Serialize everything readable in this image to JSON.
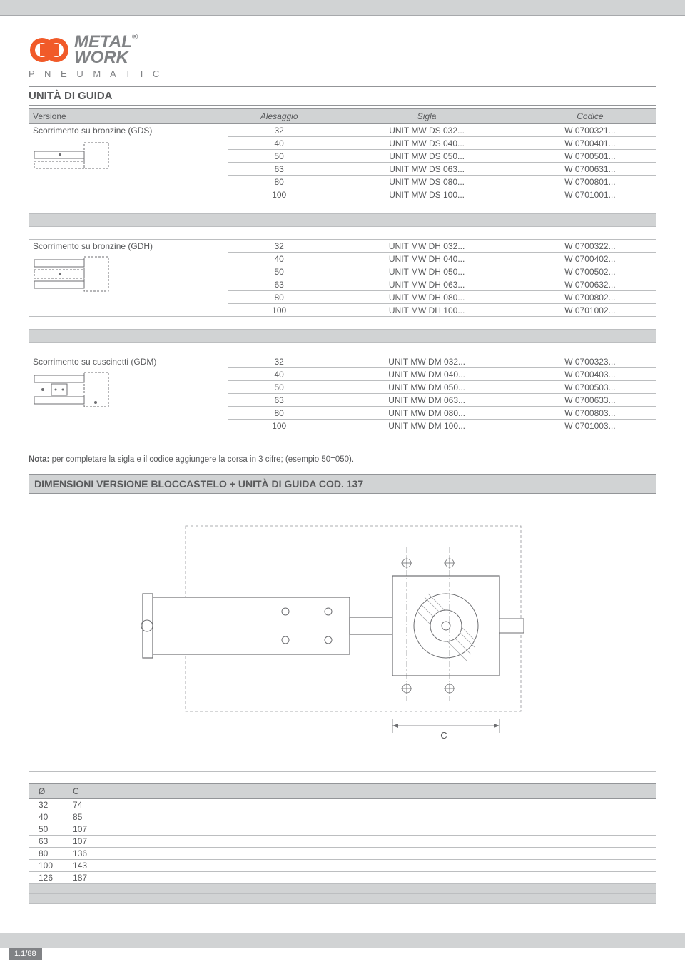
{
  "logo": {
    "brand_top": "METAL",
    "brand_bottom": "WORK",
    "tagline": "P N E U M A T I C",
    "icon_color": "#f15a29",
    "text_color": "#808285"
  },
  "title": "UNITÀ DI GUIDA",
  "headers": {
    "versione": "Versione",
    "alesaggio": "Alesaggio",
    "sigla": "Sigla",
    "codice": "Codice"
  },
  "groups": [
    {
      "name": "Scorrimento su bronzine (GDS)",
      "rows": [
        {
          "a": "32",
          "s": "UNIT MW DS 032...",
          "c": "W 0700321..."
        },
        {
          "a": "40",
          "s": "UNIT MW DS 040...",
          "c": "W 0700401..."
        },
        {
          "a": "50",
          "s": "UNIT MW DS 050...",
          "c": "W 0700501..."
        },
        {
          "a": "63",
          "s": "UNIT MW DS 063...",
          "c": "W 0700631..."
        },
        {
          "a": "80",
          "s": "UNIT MW DS 080...",
          "c": "W 0700801..."
        },
        {
          "a": "100",
          "s": "UNIT MW DS 100...",
          "c": "W 0701001..."
        }
      ],
      "icon_type": "single"
    },
    {
      "name": "Scorrimento su bronzine (GDH)",
      "rows": [
        {
          "a": "32",
          "s": "UNIT MW DH 032...",
          "c": "W 0700322..."
        },
        {
          "a": "40",
          "s": "UNIT MW DH 040...",
          "c": "W 0700402..."
        },
        {
          "a": "50",
          "s": "UNIT MW DH 050...",
          "c": "W 0700502..."
        },
        {
          "a": "63",
          "s": "UNIT MW DH 063...",
          "c": "W 0700632..."
        },
        {
          "a": "80",
          "s": "UNIT MW DH 080...",
          "c": "W 0700802..."
        },
        {
          "a": "100",
          "s": "UNIT MW DH 100...",
          "c": "W 0701002..."
        }
      ],
      "icon_type": "double"
    },
    {
      "name": "Scorrimento su cuscinetti (GDM)",
      "rows": [
        {
          "a": "32",
          "s": "UNIT MW DM 032...",
          "c": "W 0700323..."
        },
        {
          "a": "40",
          "s": "UNIT MW DM 040...",
          "c": "W 0700403..."
        },
        {
          "a": "50",
          "s": "UNIT MW DM 050...",
          "c": "W 0700503..."
        },
        {
          "a": "63",
          "s": "UNIT MW DM 063...",
          "c": "W 0700633..."
        },
        {
          "a": "80",
          "s": "UNIT MW DM 080...",
          "c": "W 0700803..."
        },
        {
          "a": "100",
          "s": "UNIT MW DM 100...",
          "c": "W 0701003..."
        }
      ],
      "icon_type": "bearing"
    }
  ],
  "note_label": "Nota:",
  "note_text": " per completare la sigla e il codice aggiungere la corsa in 3 cifre; (esempio 50=050).",
  "dim_title": "DIMENSIONI VERSIONE BLOCCASTELO + UNITÀ DI GUIDA COD. 137",
  "dim_label_c": "C",
  "dim_headers": [
    "Ø",
    "C"
  ],
  "dim_rows": [
    {
      "d": "32",
      "c": "74"
    },
    {
      "d": "40",
      "c": "85"
    },
    {
      "d": "50",
      "c": "107"
    },
    {
      "d": "63",
      "c": "107"
    },
    {
      "d": "80",
      "c": "136"
    },
    {
      "d": "100",
      "c": "143"
    },
    {
      "d": "126",
      "c": "187"
    }
  ],
  "page_number": "1.1/88",
  "colors": {
    "header_bg": "#d1d3d4",
    "border": "#939598",
    "text": "#58595b",
    "row_border": "#bcbec0"
  }
}
